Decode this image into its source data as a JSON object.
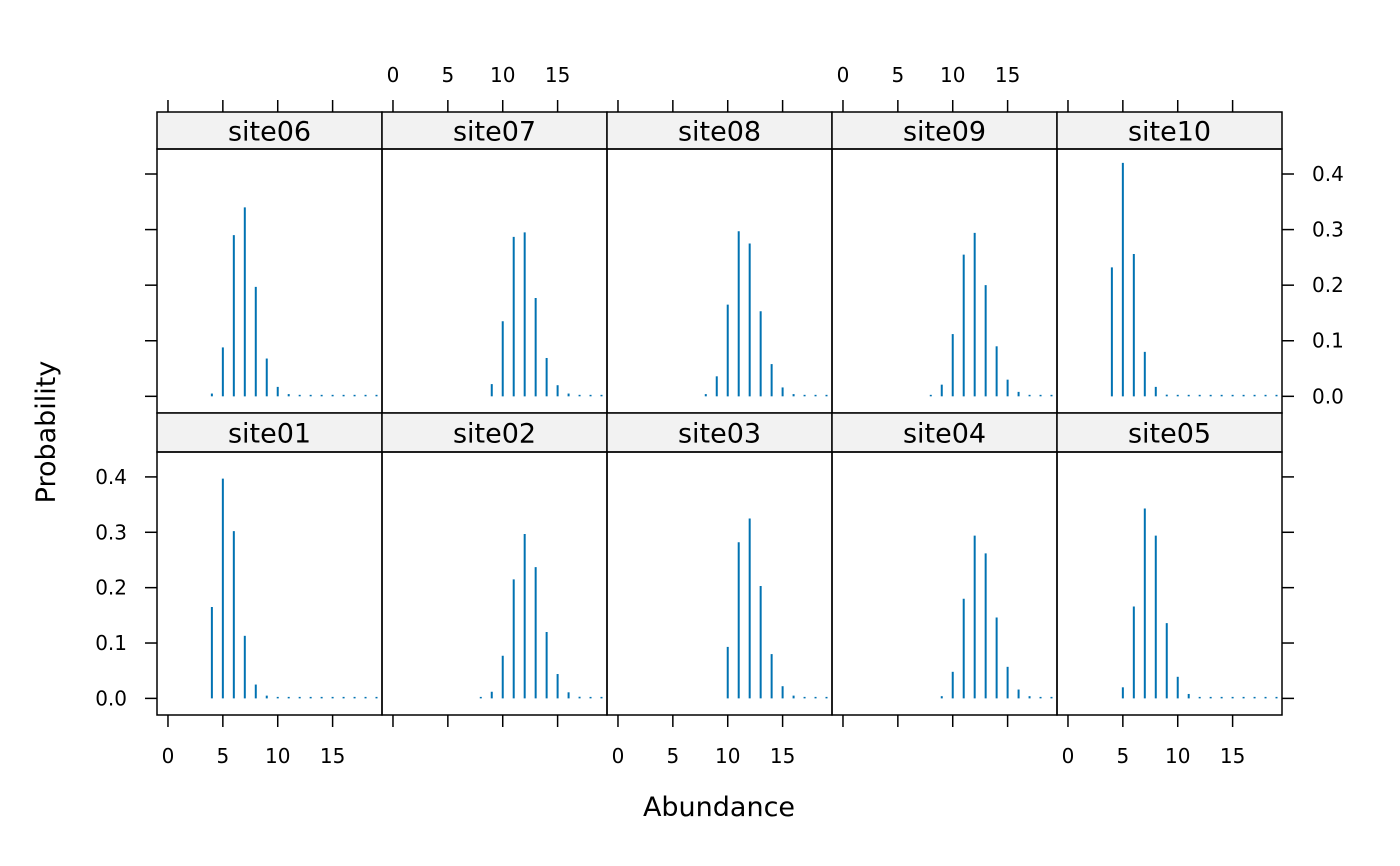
{
  "chart_data": {
    "type": "bar",
    "xlabel": "Abundance",
    "ylabel": "Probability",
    "xlim": [
      -1,
      19.5
    ],
    "ylim": [
      -0.03,
      0.445
    ],
    "x_ticks": [
      0,
      5,
      10,
      15
    ],
    "y_ticks": [
      0.0,
      0.1,
      0.2,
      0.3,
      0.4
    ],
    "y_tick_labels": [
      "0.0",
      "0.1",
      "0.2",
      "0.3",
      "0.4"
    ],
    "bar_color": "#0072B2",
    "grid": false,
    "legend": "none",
    "x": [
      0,
      1,
      2,
      3,
      4,
      5,
      6,
      7,
      8,
      9,
      10,
      11,
      12,
      13,
      14,
      15,
      16,
      17,
      18,
      19
    ],
    "panels": [
      {
        "name": "site06",
        "values": [
          0,
          0,
          0,
          0,
          0.005,
          0.088,
          0.29,
          0.34,
          0.197,
          0.068,
          0.017,
          0.004,
          0.001,
          0.001,
          0.001,
          0.001,
          0.001,
          0.001,
          0.001,
          0.001
        ]
      },
      {
        "name": "site07",
        "values": [
          0,
          0,
          0,
          0,
          0,
          0,
          0,
          0,
          0,
          0.022,
          0.135,
          0.287,
          0.295,
          0.177,
          0.069,
          0.02,
          0.005,
          0.001,
          0.001,
          0.001
        ]
      },
      {
        "name": "site08",
        "values": [
          0,
          0,
          0,
          0,
          0,
          0,
          0,
          0,
          0.004,
          0.036,
          0.165,
          0.297,
          0.275,
          0.153,
          0.058,
          0.016,
          0.004,
          0.001,
          0.001,
          0.001
        ]
      },
      {
        "name": "site09",
        "values": [
          0,
          0,
          0,
          0,
          0,
          0,
          0,
          0,
          0.002,
          0.021,
          0.112,
          0.255,
          0.294,
          0.2,
          0.09,
          0.03,
          0.008,
          0.002,
          0.001,
          0.001
        ]
      },
      {
        "name": "site10",
        "values": [
          0,
          0,
          0,
          0,
          0.232,
          0.42,
          0.256,
          0.08,
          0.017,
          0.003,
          0.001,
          0.001,
          0.001,
          0.001,
          0.001,
          0.001,
          0.001,
          0.001,
          0.001,
          0.001
        ]
      },
      {
        "name": "site01",
        "values": [
          0,
          0,
          0,
          0,
          0.165,
          0.397,
          0.302,
          0.113,
          0.025,
          0.005,
          0.001,
          0.001,
          0.001,
          0.001,
          0.001,
          0.001,
          0.001,
          0.001,
          0.001,
          0.001
        ]
      },
      {
        "name": "site02",
        "values": [
          0,
          0,
          0,
          0,
          0,
          0,
          0,
          0,
          0.002,
          0.012,
          0.077,
          0.215,
          0.297,
          0.237,
          0.12,
          0.044,
          0.011,
          0.003,
          0.001,
          0.001
        ]
      },
      {
        "name": "site03",
        "values": [
          0,
          0,
          0,
          0,
          0,
          0,
          0,
          0,
          0,
          0,
          0.093,
          0.282,
          0.325,
          0.203,
          0.08,
          0.022,
          0.005,
          0.001,
          0.001,
          0.001
        ]
      },
      {
        "name": "site04",
        "values": [
          0,
          0,
          0,
          0,
          0,
          0,
          0,
          0,
          0,
          0.004,
          0.048,
          0.18,
          0.294,
          0.262,
          0.146,
          0.057,
          0.016,
          0.004,
          0.001,
          0.001
        ]
      },
      {
        "name": "site05",
        "values": [
          0,
          0,
          0,
          0,
          0,
          0.02,
          0.166,
          0.343,
          0.294,
          0.136,
          0.039,
          0.008,
          0.002,
          0.001,
          0.001,
          0.001,
          0.001,
          0.001,
          0.001,
          0.001
        ]
      }
    ]
  }
}
